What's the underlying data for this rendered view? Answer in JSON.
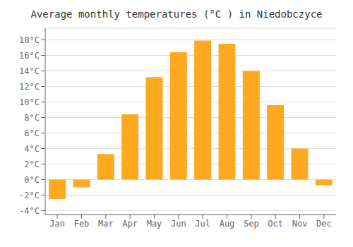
{
  "chart_data": {
    "type": "bar",
    "title": "Average monthly temperatures (°C ) in Niedobczyce",
    "categories": [
      "Jan",
      "Feb",
      "Mar",
      "Apr",
      "May",
      "Jun",
      "Jul",
      "Aug",
      "Sep",
      "Oct",
      "Nov",
      "Dec"
    ],
    "values": [
      -2.5,
      -1.0,
      3.3,
      8.4,
      13.2,
      16.4,
      17.9,
      17.5,
      14.0,
      9.6,
      4.0,
      -0.7
    ],
    "color": "#FFA920",
    "ylim": [
      -4.5,
      19.5
    ],
    "yticks": [
      {
        "value": -4,
        "label": "-4°C"
      },
      {
        "value": -2,
        "label": "-2°C"
      },
      {
        "value": 0,
        "label": "0°C"
      },
      {
        "value": 2,
        "label": "2°C"
      },
      {
        "value": 4,
        "label": "4°C"
      },
      {
        "value": 6,
        "label": "6°C"
      },
      {
        "value": 8,
        "label": "8°C"
      },
      {
        "value": 10,
        "label": "10°C"
      },
      {
        "value": 12,
        "label": "12°C"
      },
      {
        "value": 14,
        "label": "14°C"
      },
      {
        "value": 16,
        "label": "16°C"
      },
      {
        "value": 18,
        "label": "18°C"
      }
    ],
    "grid": true
  }
}
